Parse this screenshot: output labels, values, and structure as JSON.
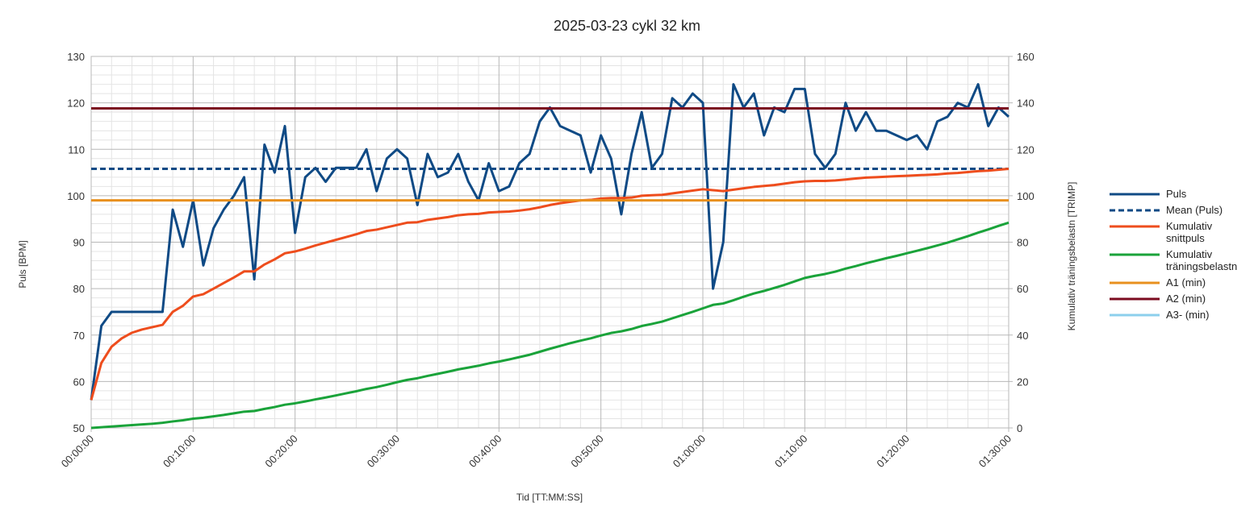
{
  "chart_data": {
    "type": "line",
    "title": "2025-03-23 cykl 32 km",
    "x_label": "Tid [TT:MM:SS]",
    "y_label": "Puls [BPM]",
    "y2_label": "Kumulativ träningsbelastn [TRIMP]",
    "x": [
      0,
      1,
      2,
      3,
      4,
      5,
      6,
      7,
      8,
      9,
      10,
      11,
      12,
      13,
      14,
      15,
      16,
      17,
      18,
      19,
      20,
      21,
      22,
      23,
      24,
      25,
      26,
      27,
      28,
      29,
      30,
      31,
      32,
      33,
      34,
      35,
      36,
      37,
      38,
      39,
      40,
      41,
      42,
      43,
      44,
      45,
      46,
      47,
      48,
      49,
      50,
      51,
      52,
      53,
      54,
      55,
      56,
      57,
      58,
      59,
      60,
      61,
      62,
      63,
      64,
      65,
      66,
      67,
      68,
      69,
      70,
      71,
      72,
      73,
      74,
      75,
      76,
      77,
      78,
      79,
      80,
      81,
      82,
      83,
      84,
      85,
      86,
      87,
      88,
      89,
      90
    ],
    "xlim": [
      0,
      90
    ],
    "xticks": [
      {
        "value": 0,
        "label": "00:00:00"
      },
      {
        "value": 10,
        "label": "00:10:00"
      },
      {
        "value": 20,
        "label": "00:20:00"
      },
      {
        "value": 30,
        "label": "00:30:00"
      },
      {
        "value": 40,
        "label": "00:40:00"
      },
      {
        "value": 50,
        "label": "00:50:00"
      },
      {
        "value": 60,
        "label": "01:00:00"
      },
      {
        "value": 70,
        "label": "01:10:00"
      },
      {
        "value": 80,
        "label": "01:20:00"
      },
      {
        "value": 90,
        "label": "01:30:00"
      }
    ],
    "ylim": [
      50,
      130
    ],
    "yticks": [
      50,
      60,
      70,
      80,
      90,
      100,
      110,
      120,
      130
    ],
    "y2lim": [
      0,
      160
    ],
    "y2ticks": [
      0,
      20,
      40,
      60,
      80,
      100,
      120,
      140,
      160
    ],
    "grid": true,
    "minor_grid": true,
    "legend": "right",
    "series": [
      {
        "name": "Puls",
        "color": "#0f4a85",
        "values": [
          56,
          72,
          75,
          75,
          75,
          75,
          75,
          75,
          97,
          89,
          99,
          85,
          93,
          97,
          100,
          104,
          82,
          111,
          105,
          115,
          92,
          104,
          106,
          103,
          106,
          106,
          106,
          110,
          101,
          108,
          110,
          108,
          98,
          109,
          104,
          105,
          109,
          103,
          99,
          107,
          101,
          102,
          107,
          109,
          116,
          119,
          115,
          114,
          113,
          105,
          113,
          108,
          96,
          109,
          118,
          106,
          109,
          121,
          119,
          122,
          120,
          80,
          90,
          124,
          119,
          122,
          113,
          119,
          118,
          123,
          123,
          109,
          106,
          109,
          120,
          114,
          118,
          114,
          114,
          113,
          112,
          113,
          110,
          116,
          117,
          120,
          119,
          124,
          115,
          119,
          117
        ]
      },
      {
        "name": "Mean (Puls)",
        "color": "#0f4a85",
        "dash": true,
        "value": 105.8
      },
      {
        "name": "Kumulativ snittpuls",
        "color": "#ee4d1d",
        "values": [
          56,
          64,
          67.5,
          69.3,
          70.5,
          71.2,
          71.7,
          72.2,
          75,
          76.3,
          78.3,
          78.8,
          80,
          81.2,
          82.4,
          83.7,
          83.7,
          85.2,
          86.3,
          87.6,
          88,
          88.6,
          89.3,
          89.9,
          90.5,
          91.1,
          91.7,
          92.4,
          92.7,
          93.2,
          93.7,
          94.2,
          94.3,
          94.8,
          95.1,
          95.4,
          95.8,
          96,
          96.1,
          96.4,
          96.5,
          96.6,
          96.8,
          97.1,
          97.5,
          98,
          98.4,
          98.7,
          99,
          99.1,
          99.4,
          99.5,
          99.5,
          99.6,
          100,
          100.1,
          100.2,
          100.5,
          100.8,
          101.1,
          101.4,
          101.2,
          101,
          101.3,
          101.6,
          101.9,
          102.1,
          102.3,
          102.6,
          102.9,
          103.1,
          103.2,
          103.2,
          103.3,
          103.5,
          103.7,
          103.9,
          104,
          104.1,
          104.2,
          104.3,
          104.4,
          104.5,
          104.6,
          104.8,
          104.9,
          105.1,
          105.3,
          105.4,
          105.6,
          105.8
        ]
      },
      {
        "name": "Kumulativ träningsbelastn",
        "color": "#1aa33a",
        "axis": "y2",
        "values": [
          0,
          0.3,
          0.6,
          0.9,
          1.2,
          1.5,
          1.8,
          2.2,
          2.8,
          3.3,
          4,
          4.4,
          5,
          5.6,
          6.3,
          7,
          7.3,
          8.2,
          9,
          10,
          10.6,
          11.4,
          12.3,
          13.1,
          14,
          14.9,
          15.8,
          16.8,
          17.6,
          18.6,
          19.7,
          20.7,
          21.4,
          22.4,
          23.3,
          24.2,
          25.2,
          26,
          26.8,
          27.8,
          28.6,
          29.5,
          30.5,
          31.5,
          32.8,
          34.1,
          35.3,
          36.5,
          37.6,
          38.6,
          39.8,
          40.9,
          41.6,
          42.6,
          43.9,
          44.8,
          45.8,
          47.2,
          48.6,
          50,
          51.5,
          53,
          53.6,
          55,
          56.5,
          57.9,
          59,
          60.3,
          61.6,
          63.1,
          64.6,
          65.5,
          66.3,
          67.3,
          68.6,
          69.7,
          70.9,
          72,
          73.1,
          74.1,
          75.2,
          76.3,
          77.4,
          78.6,
          79.8,
          81.2,
          82.6,
          84.1,
          85.5,
          87,
          88.4
        ]
      },
      {
        "name": "A1 (min)",
        "color": "#e8901e",
        "value": 99
      },
      {
        "name": "A2 (min)",
        "color": "#7b0b1f",
        "value": 118.8
      },
      {
        "name": "A3- (min)",
        "color": "#8ccfec",
        "value": null
      }
    ]
  }
}
